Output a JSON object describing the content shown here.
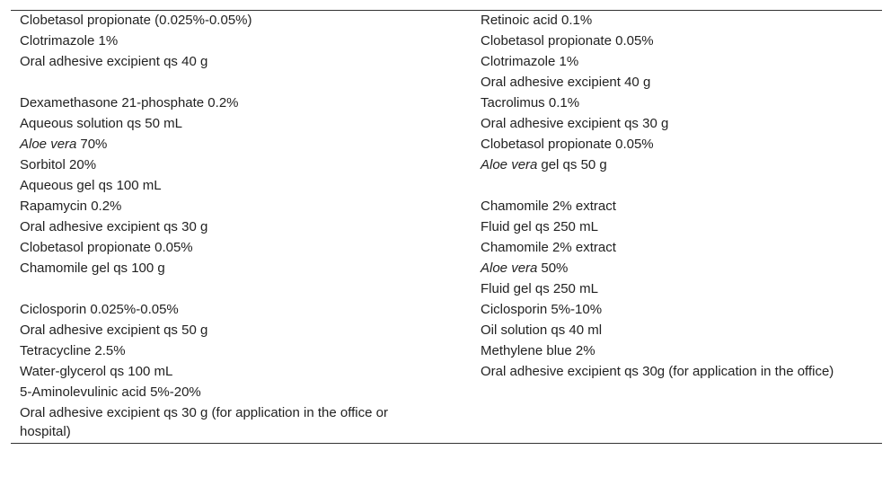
{
  "table": {
    "rows": [
      [
        [
          "Clobetasol propionate (0.025%-0.05%)",
          "Clotrimazole 1%",
          "Oral adhesive excipient qs 40 g"
        ],
        [
          "Retinoic acid 0.1%",
          "Clobetasol propionate 0.05%",
          "Clotrimazole 1%",
          "Oral adhesive excipient 40 g"
        ]
      ],
      [
        [
          "Dexamethasone 21-phosphate 0.2%",
          "Aqueous solution qs 50 mL"
        ],
        [
          "Tacrolimus 0.1%",
          "Oral adhesive excipient qs 30 g"
        ]
      ],
      [
        [
          {
            "em": "Aloe vera",
            "text": "70%"
          },
          "Sorbitol 20%",
          "Aqueous gel qs 100 mL"
        ],
        [
          "Clobetasol propionate 0.05%",
          {
            "em": "Aloe vera",
            "text": "gel qs 50 g"
          }
        ]
      ],
      [
        [
          "Rapamycin 0.2%",
          "Oral adhesive excipient qs 30 g"
        ],
        [
          "Chamomile 2% extract",
          "Fluid gel qs 250 mL"
        ]
      ],
      [
        [
          "Clobetasol propionate 0.05%",
          "Chamomile gel qs 100 g"
        ],
        [
          "Chamomile 2% extract",
          {
            "em": "Aloe vera",
            "text": "50%"
          },
          "Fluid gel qs 250 mL"
        ]
      ],
      [
        [
          "Ciclosporin 0.025%-0.05%",
          "Oral adhesive excipient qs 50 g"
        ],
        [
          "Ciclosporin 5%-10%",
          "Oil solution qs 40 ml"
        ]
      ],
      [
        [
          "Tetracycline 2.5%",
          "Water-glycerol qs 100 mL"
        ],
        [
          "Methylene blue 2%",
          "Oral adhesive excipient qs 30g (for application in the office)"
        ]
      ],
      [
        [
          "5-Aminolevulinic acid 5%-20%",
          "Oral adhesive excipient qs 30 g (for application in the office or hospital)"
        ],
        []
      ]
    ]
  }
}
